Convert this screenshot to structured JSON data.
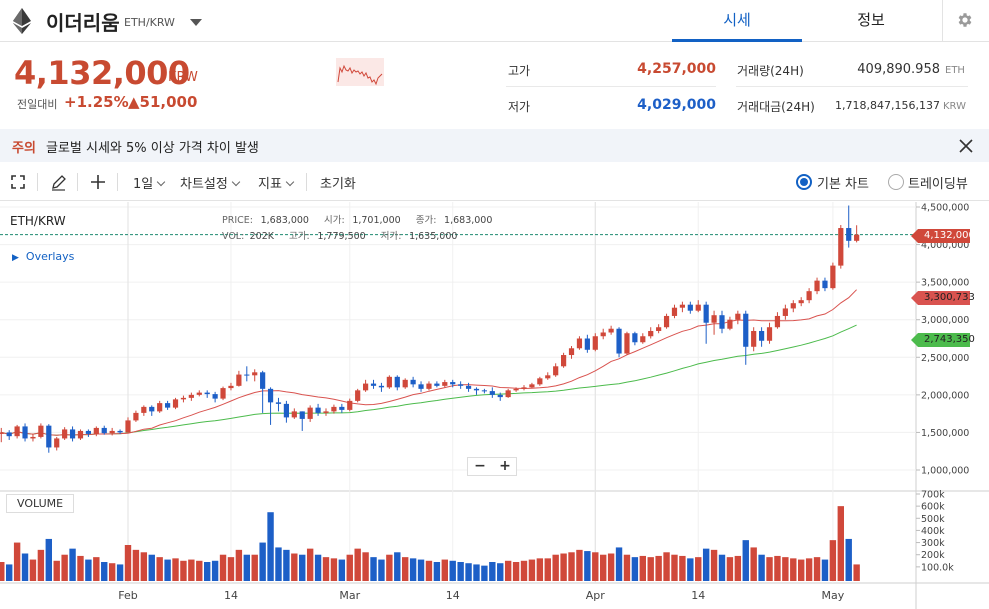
{
  "header": {
    "coin_name": "이더리움",
    "pair": "ETH/KRW",
    "tabs": [
      "시세",
      "정보"
    ]
  },
  "price": {
    "current": "4,132,000",
    "unit": "KRW",
    "change_label": "전일대비",
    "change_pct": "+1.25%",
    "change_amount": "▲51,000"
  },
  "stats": {
    "high_label": "고가",
    "high_value": "4,257,000",
    "low_label": "저가",
    "low_value": "4,029,000",
    "volume_label": "거래량(24H)",
    "volume_value": "409,890.958",
    "volume_unit": "ETH",
    "amount_label": "거래대금(24H)",
    "amount_value": "1,718,847,156,137",
    "amount_unit": "KRW"
  },
  "notice": {
    "tag": "주의",
    "message": "글로벌 시세와 5% 이상 가격 차이 발생"
  },
  "toolbar": {
    "interval": "1일",
    "chart_settings": "차트설정",
    "indicators": "지표",
    "reset": "초기화",
    "basic_chart": "기본 차트",
    "tradingview": "트레이딩뷰"
  },
  "legend": {
    "pair": "ETH/KRW",
    "overlays": "Overlays",
    "price_label": "PRICE:",
    "price_value": "1,683,000",
    "open_label": "시가:",
    "open_value": "1,701,000",
    "close_label": "종가:",
    "close_value": "1,683,000",
    "vol_label": "VOL:",
    "vol_value": "202K",
    "high_label": "고가:",
    "high_value": "1,779,500",
    "low_label": "저가:",
    "low_value": "1,635,000",
    "volume_panel": "VOLUME"
  },
  "price_labels": {
    "current": "4,132,000",
    "ma_short": "3,300,733",
    "ma_long": "2,743,350"
  },
  "colors": {
    "up": "#d0483a",
    "down": "#1d5fc7",
    "ma_short": "#d9534f",
    "ma_long": "#4cbb4c",
    "current_line": "#1f8a70",
    "accent": "#1261c4"
  },
  "chart_data": {
    "type": "candlestick",
    "price_axis": [
      "4,500,000",
      "4,000,000",
      "3,500,000",
      "3,000,000",
      "2,500,000",
      "2,000,000",
      "1,500,000",
      "1,000,000"
    ],
    "price_ticks": [
      4500000,
      4000000,
      3500000,
      3000000,
      2500000,
      2000000,
      1500000,
      1000000
    ],
    "volume_axis": [
      "700k",
      "600k",
      "500k",
      "400k",
      "300k",
      "200k",
      "100.0k"
    ],
    "volume_ticks": [
      700000,
      600000,
      500000,
      400000,
      300000,
      200000,
      100000
    ],
    "x_ticks": [
      {
        "label": "Feb",
        "day": 0
      },
      {
        "label": "14",
        "day": 13
      },
      {
        "label": "Mar",
        "day": 28
      },
      {
        "label": "14",
        "day": 41
      },
      {
        "label": "Apr",
        "day": 59
      },
      {
        "label": "14",
        "day": 72
      },
      {
        "label": "May",
        "day": 89
      }
    ],
    "candles": [
      [
        1480000,
        1500000,
        1370000,
        1560000,
        140000
      ],
      [
        1500000,
        1450000,
        1400000,
        1530000,
        120000
      ],
      [
        1450000,
        1580000,
        1420000,
        1600000,
        300000
      ],
      [
        1580000,
        1420000,
        1380000,
        1620000,
        210000
      ],
      [
        1420000,
        1440000,
        1380000,
        1480000,
        160000
      ],
      [
        1440000,
        1590000,
        1420000,
        1620000,
        240000
      ],
      [
        1590000,
        1300000,
        1230000,
        1610000,
        330000
      ],
      [
        1300000,
        1420000,
        1260000,
        1440000,
        150000
      ],
      [
        1420000,
        1540000,
        1400000,
        1570000,
        200000
      ],
      [
        1540000,
        1420000,
        1380000,
        1580000,
        250000
      ],
      [
        1420000,
        1520000,
        1400000,
        1540000,
        190000
      ],
      [
        1520000,
        1480000,
        1440000,
        1540000,
        160000
      ],
      [
        1480000,
        1560000,
        1450000,
        1580000,
        180000
      ],
      [
        1560000,
        1490000,
        1470000,
        1590000,
        140000
      ],
      [
        1490000,
        1520000,
        1460000,
        1560000,
        130000
      ],
      [
        1520000,
        1500000,
        1480000,
        1540000,
        120000
      ],
      [
        1500000,
        1660000,
        1500000,
        1700000,
        280000
      ],
      [
        1660000,
        1760000,
        1640000,
        1790000,
        240000
      ],
      [
        1760000,
        1840000,
        1720000,
        1860000,
        220000
      ],
      [
        1840000,
        1780000,
        1720000,
        1860000,
        200000
      ],
      [
        1780000,
        1890000,
        1760000,
        1920000,
        180000
      ],
      [
        1890000,
        1830000,
        1800000,
        1920000,
        160000
      ],
      [
        1830000,
        1940000,
        1810000,
        1960000,
        170000
      ],
      [
        1940000,
        1960000,
        1900000,
        1990000,
        150000
      ],
      [
        1960000,
        2000000,
        1920000,
        2030000,
        160000
      ],
      [
        2000000,
        2030000,
        1980000,
        2060000,
        150000
      ],
      [
        2030000,
        2010000,
        1960000,
        2060000,
        140000
      ],
      [
        2010000,
        1950000,
        1900000,
        2040000,
        150000
      ],
      [
        1950000,
        2090000,
        1930000,
        2110000,
        200000
      ],
      [
        2090000,
        2120000,
        2060000,
        2160000,
        180000
      ],
      [
        2120000,
        2270000,
        2110000,
        2320000,
        240000
      ],
      [
        2270000,
        2260000,
        2180000,
        2380000,
        200000
      ],
      [
        2260000,
        2300000,
        2180000,
        2340000,
        200000
      ],
      [
        2300000,
        2080000,
        1760000,
        2320000,
        300000
      ],
      [
        2080000,
        1900000,
        1600000,
        2100000,
        550000
      ],
      [
        1900000,
        1880000,
        1780000,
        1960000,
        260000
      ],
      [
        1880000,
        1700000,
        1630000,
        1920000,
        240000
      ],
      [
        1700000,
        1780000,
        1680000,
        1820000,
        210000
      ],
      [
        1780000,
        1680000,
        1520000,
        1780000,
        200000
      ],
      [
        1680000,
        1830000,
        1640000,
        1860000,
        250000
      ],
      [
        1830000,
        1760000,
        1720000,
        1880000,
        200000
      ],
      [
        1760000,
        1780000,
        1720000,
        1820000,
        180000
      ],
      [
        1780000,
        1840000,
        1750000,
        1870000,
        170000
      ],
      [
        1840000,
        1800000,
        1760000,
        1880000,
        160000
      ],
      [
        1800000,
        1920000,
        1780000,
        1950000,
        200000
      ],
      [
        1920000,
        2060000,
        1900000,
        2080000,
        250000
      ],
      [
        2060000,
        2150000,
        2040000,
        2200000,
        220000
      ],
      [
        2150000,
        2120000,
        2080000,
        2200000,
        180000
      ],
      [
        2120000,
        2100000,
        2040000,
        2160000,
        160000
      ],
      [
        2100000,
        2240000,
        2080000,
        2260000,
        200000
      ],
      [
        2240000,
        2100000,
        2060000,
        2260000,
        220000
      ],
      [
        2100000,
        2200000,
        2080000,
        2220000,
        180000
      ],
      [
        2200000,
        2140000,
        2100000,
        2240000,
        170000
      ],
      [
        2140000,
        2080000,
        2040000,
        2180000,
        160000
      ],
      [
        2080000,
        2150000,
        2060000,
        2180000,
        150000
      ],
      [
        2150000,
        2120000,
        2100000,
        2180000,
        140000
      ],
      [
        2120000,
        2170000,
        2100000,
        2200000,
        160000
      ],
      [
        2170000,
        2140000,
        2100000,
        2200000,
        150000
      ],
      [
        2140000,
        2120000,
        2080000,
        2180000,
        140000
      ],
      [
        2120000,
        2080000,
        2040000,
        2160000,
        130000
      ],
      [
        2080000,
        2060000,
        2000000,
        2100000,
        120000
      ],
      [
        2060000,
        2050000,
        2020000,
        2080000,
        110000
      ],
      [
        2050000,
        2000000,
        1960000,
        2100000,
        140000
      ],
      [
        2000000,
        1970000,
        1920000,
        2030000,
        130000
      ],
      [
        1970000,
        2060000,
        1960000,
        2080000,
        150000
      ],
      [
        2060000,
        2080000,
        2040000,
        2100000,
        140000
      ],
      [
        2080000,
        2100000,
        2060000,
        2130000,
        150000
      ],
      [
        2100000,
        2140000,
        2090000,
        2160000,
        160000
      ],
      [
        2140000,
        2220000,
        2120000,
        2240000,
        170000
      ],
      [
        2220000,
        2260000,
        2200000,
        2300000,
        170000
      ],
      [
        2260000,
        2380000,
        2240000,
        2420000,
        200000
      ],
      [
        2380000,
        2530000,
        2360000,
        2560000,
        210000
      ],
      [
        2530000,
        2620000,
        2480000,
        2650000,
        220000
      ],
      [
        2620000,
        2750000,
        2600000,
        2780000,
        240000
      ],
      [
        2750000,
        2600000,
        2560000,
        2800000,
        230000
      ],
      [
        2600000,
        2780000,
        2580000,
        2820000,
        220000
      ],
      [
        2780000,
        2830000,
        2740000,
        2880000,
        200000
      ],
      [
        2830000,
        2880000,
        2800000,
        2920000,
        210000
      ],
      [
        2880000,
        2550000,
        2500000,
        2900000,
        260000
      ],
      [
        2550000,
        2820000,
        2530000,
        2840000,
        200000
      ],
      [
        2820000,
        2700000,
        2660000,
        2840000,
        180000
      ],
      [
        2700000,
        2780000,
        2680000,
        2820000,
        190000
      ],
      [
        2780000,
        2850000,
        2750000,
        2900000,
        180000
      ],
      [
        2850000,
        2900000,
        2820000,
        2940000,
        190000
      ],
      [
        2900000,
        3050000,
        2880000,
        3080000,
        220000
      ],
      [
        3050000,
        3160000,
        3020000,
        3200000,
        200000
      ],
      [
        3160000,
        3200000,
        3100000,
        3240000,
        190000
      ],
      [
        3200000,
        3120000,
        3080000,
        3240000,
        170000
      ],
      [
        3120000,
        3200000,
        3100000,
        3260000,
        180000
      ],
      [
        3200000,
        2960000,
        2680000,
        3240000,
        250000
      ],
      [
        2960000,
        3060000,
        2800000,
        3120000,
        240000
      ],
      [
        3060000,
        2880000,
        2820000,
        3120000,
        200000
      ],
      [
        2880000,
        3000000,
        2860000,
        3040000,
        180000
      ],
      [
        3000000,
        3080000,
        2940000,
        3120000,
        190000
      ],
      [
        3080000,
        2640000,
        2400000,
        3120000,
        320000
      ],
      [
        2640000,
        2850000,
        2580000,
        2900000,
        260000
      ],
      [
        2850000,
        2720000,
        2640000,
        2900000,
        200000
      ],
      [
        2720000,
        2900000,
        2680000,
        2960000,
        180000
      ],
      [
        2900000,
        3050000,
        2880000,
        3100000,
        190000
      ],
      [
        3050000,
        3150000,
        3000000,
        3200000,
        180000
      ],
      [
        3150000,
        3220000,
        3100000,
        3260000,
        170000
      ],
      [
        3220000,
        3260000,
        3180000,
        3300000,
        160000
      ],
      [
        3260000,
        3380000,
        3220000,
        3420000,
        170000
      ],
      [
        3380000,
        3520000,
        3340000,
        3560000,
        180000
      ],
      [
        3520000,
        3420000,
        3380000,
        3560000,
        160000
      ],
      [
        3420000,
        3720000,
        3400000,
        3760000,
        320000
      ],
      [
        3720000,
        4220000,
        3680000,
        4260000,
        600000
      ],
      [
        4220000,
        4050000,
        3960000,
        4520000,
        330000
      ],
      [
        4050000,
        4132000,
        4029000,
        4257000,
        120000
      ]
    ]
  }
}
